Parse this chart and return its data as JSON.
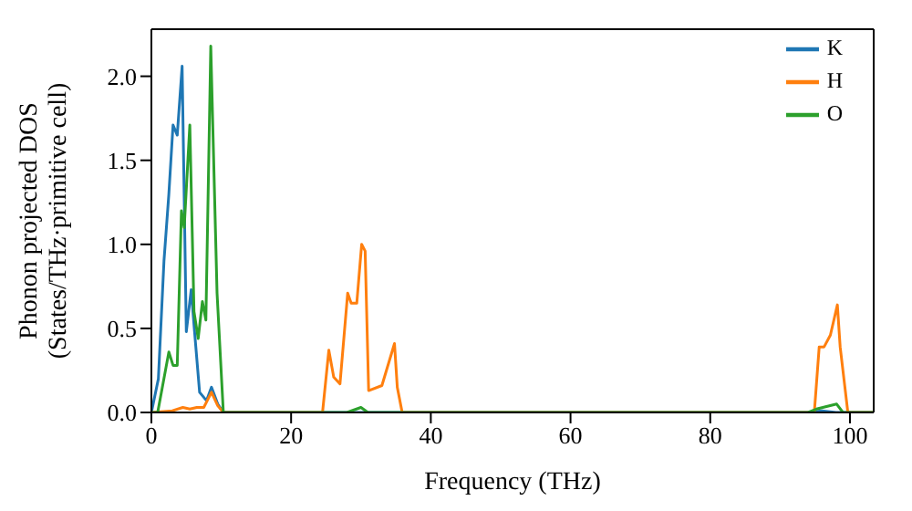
{
  "chart_data": {
    "type": "line",
    "xlabel": "Frequency (THz)",
    "ylabel": "Phonon projected DOS\n(States/THz·primitive cell)",
    "xlim": [
      0,
      103.4
    ],
    "ylim": [
      0,
      2.28
    ],
    "xticks": [
      0,
      20,
      40,
      60,
      80,
      100
    ],
    "yticks": [
      {
        "value": 0,
        "label": "0.0"
      },
      {
        "value": 0.5,
        "label": "0.5"
      },
      {
        "value": 1,
        "label": "1.0"
      },
      {
        "value": 1.5,
        "label": "1.5"
      },
      {
        "value": 2,
        "label": "2.0"
      }
    ],
    "legend": "top right",
    "grid": false,
    "marker": "none",
    "line_style": "solid",
    "series": [
      {
        "name": "K",
        "color": "#1f77b4",
        "x": [
          0,
          1,
          1.8,
          2.5,
          3.1,
          3.7,
          4.4,
          5.0,
          5.7,
          6.1,
          6.9,
          7.9,
          8.6,
          9.5,
          10.3,
          94,
          96,
          98,
          103.4
        ],
        "values": [
          0,
          0.2,
          0.9,
          1.3,
          1.71,
          1.65,
          2.06,
          0.48,
          0.73,
          0.52,
          0.12,
          0.07,
          0.15,
          0.05,
          0,
          0,
          0.01,
          0,
          0
        ]
      },
      {
        "name": "H",
        "color": "#ff7f0e",
        "x": [
          0,
          3,
          4.5,
          5.5,
          6.5,
          7.5,
          8.6,
          9.5,
          10.3,
          24.5,
          25.4,
          26.1,
          27.0,
          28.1,
          28.6,
          29.4,
          30.1,
          30.6,
          31.1,
          33,
          34.8,
          35.2,
          35.9,
          94.9,
          95.6,
          96.3,
          97.2,
          98.2,
          98.6,
          99.7,
          103.4
        ],
        "values": [
          0,
          0.01,
          0.03,
          0.02,
          0.03,
          0.03,
          0.12,
          0.04,
          0,
          0,
          0.37,
          0.21,
          0.17,
          0.71,
          0.65,
          0.65,
          1.0,
          0.96,
          0.13,
          0.16,
          0.41,
          0.15,
          0,
          0,
          0.39,
          0.39,
          0.46,
          0.64,
          0.39,
          0,
          0
        ]
      },
      {
        "name": "O",
        "color": "#2ca02c",
        "x": [
          0,
          0.9,
          2.5,
          3.1,
          3.7,
          4.3,
          4.7,
          5.5,
          6.1,
          6.7,
          7.3,
          7.8,
          8.5,
          9.4,
          10.3,
          28,
          30,
          31,
          94,
          95.2,
          98.1,
          99,
          103.4
        ],
        "values": [
          0,
          0,
          0.36,
          0.28,
          0.28,
          1.2,
          1.1,
          1.71,
          0.6,
          0.44,
          0.66,
          0.55,
          2.18,
          0.71,
          0,
          0,
          0.03,
          0,
          0,
          0.02,
          0.05,
          0,
          0
        ]
      }
    ]
  }
}
